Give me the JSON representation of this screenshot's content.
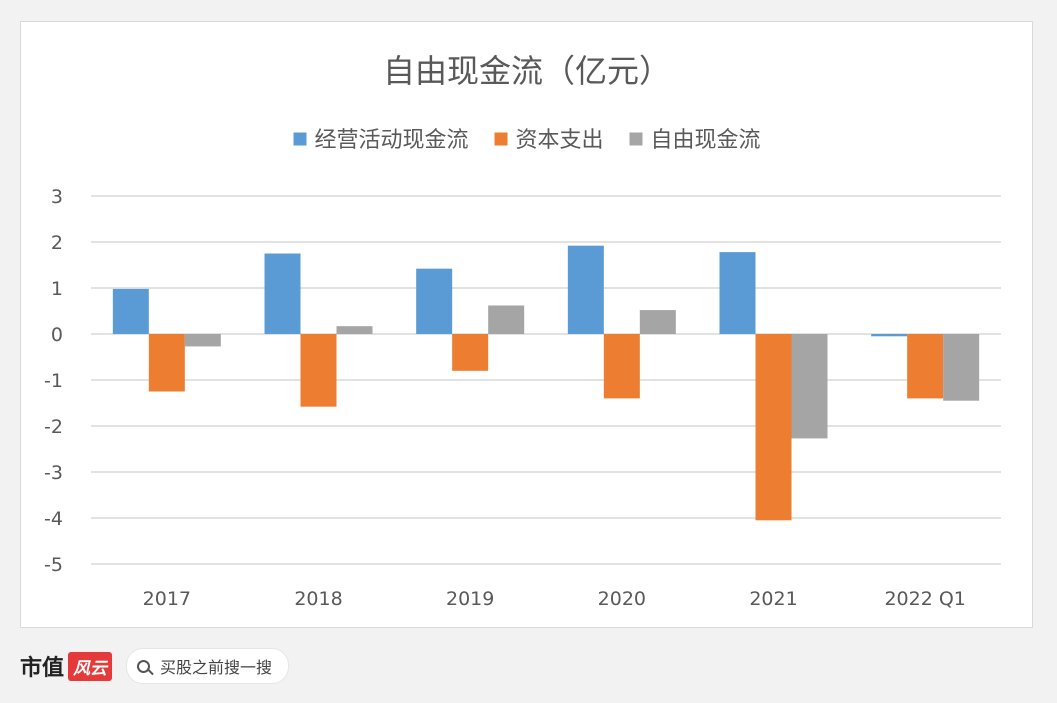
{
  "chart_data": {
    "type": "bar",
    "title": "自由现金流（亿元）",
    "categories": [
      "2017",
      "2018",
      "2019",
      "2020",
      "2021",
      "2022 Q1"
    ],
    "series": [
      {
        "name": "经营活动现金流",
        "color": "#5b9bd5",
        "values": [
          0.98,
          1.75,
          1.42,
          1.92,
          1.78,
          -0.05
        ]
      },
      {
        "name": "资本支出",
        "color": "#ed7d31",
        "values": [
          -1.25,
          -1.58,
          -0.8,
          -1.4,
          -4.05,
          -1.4
        ]
      },
      {
        "name": "自由现金流",
        "color": "#a5a5a5",
        "values": [
          -0.27,
          0.17,
          0.62,
          0.52,
          -2.27,
          -1.45
        ]
      }
    ],
    "ylim": [
      -5,
      3
    ],
    "yticks": [
      "3",
      "2",
      "1",
      "0",
      "-1",
      "-2",
      "-3",
      "-4",
      "-5"
    ],
    "grid": true,
    "legend": "top"
  },
  "footer": {
    "brand": "市值",
    "brand_mark": "风云",
    "search_text": "买股之前搜一搜"
  }
}
